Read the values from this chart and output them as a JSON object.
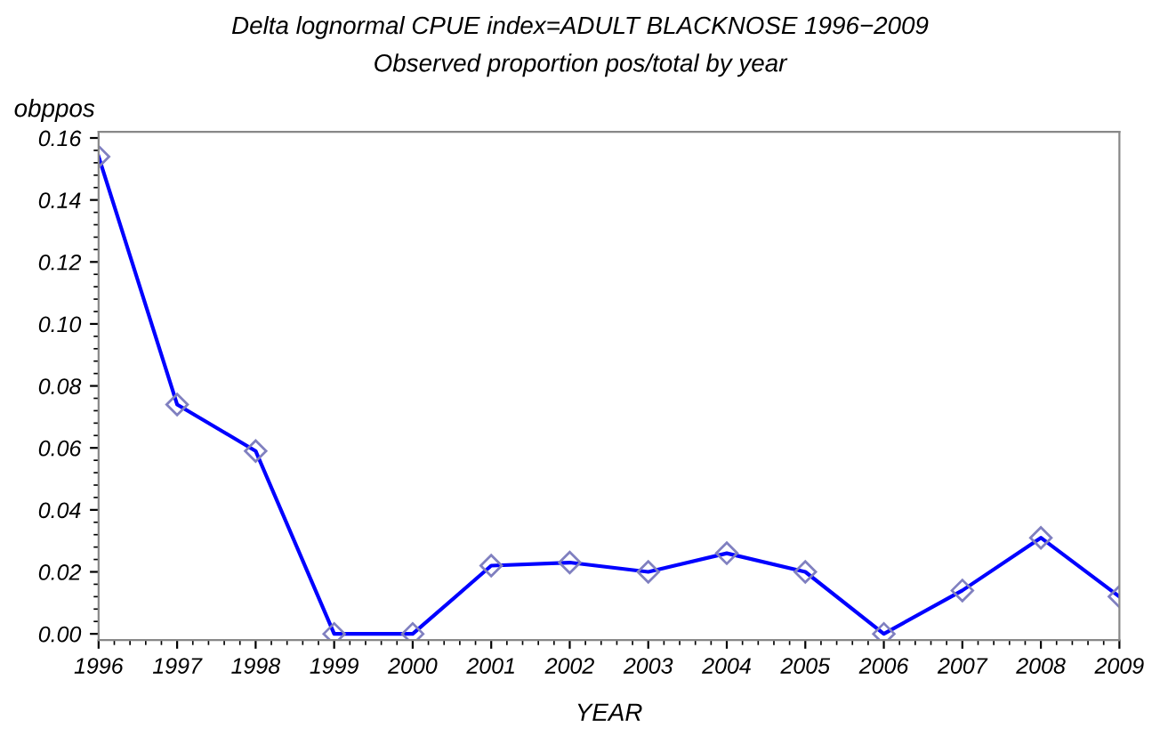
{
  "chart_data": {
    "type": "line",
    "title": "Delta lognormal CPUE index=ADULT BLACKNOSE 1996−2009",
    "subtitle": "Observed proportion pos/total by year",
    "xlabel": "YEAR",
    "ylabel": "obppos",
    "x": [
      1996,
      1997,
      1998,
      1999,
      2000,
      2001,
      2002,
      2003,
      2004,
      2005,
      2006,
      2007,
      2008,
      2009
    ],
    "series": [
      {
        "color": "#0000ff",
        "values": [
          0.154,
          0.074,
          0.059,
          0.0,
          0.0,
          0.022,
          0.023,
          0.02,
          0.026,
          0.02,
          0.0,
          0.014,
          0.031,
          0.012
        ]
      }
    ],
    "xlim": [
      1996,
      2009
    ],
    "xticks": [
      1996,
      1997,
      1998,
      1999,
      2000,
      2001,
      2002,
      2003,
      2004,
      2005,
      2006,
      2007,
      2008,
      2009
    ],
    "ylim": [
      -0.002,
      0.162
    ],
    "yticks": [
      {
        "value": 0,
        "label": "0.00"
      },
      {
        "value": 0.02,
        "label": "0.02"
      },
      {
        "value": 0.04,
        "label": "0.04"
      },
      {
        "value": 0.06,
        "label": "0.06"
      },
      {
        "value": 0.08,
        "label": "0.08"
      },
      {
        "value": 0.1,
        "label": "0.10"
      },
      {
        "value": 0.12,
        "label": "0.12"
      },
      {
        "value": 0.14,
        "label": "0.14"
      },
      {
        "value": 0.16,
        "label": "0.16"
      }
    ],
    "marker": "diamond",
    "line_style": "solid",
    "grid": false,
    "legend": false
  }
}
